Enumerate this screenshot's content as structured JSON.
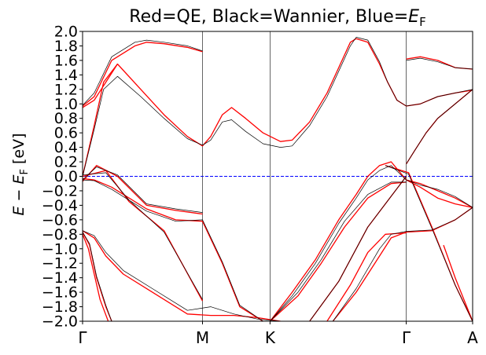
{
  "chart_data": {
    "type": "line",
    "title": "Red=QE, Black=Wannier, Blue=",
    "title_symbol": "E",
    "title_symbol_sub": "F",
    "ylabel": "E − E",
    "ylabel_sub": "F",
    "ylabel_unit": " [eV]",
    "xlabel": "",
    "ylim": [
      -2.0,
      2.0
    ],
    "ytick_step": 0.2,
    "xlim": [
      0,
      3.35
    ],
    "xticks": [
      {
        "label": "Γ",
        "x": 0
      },
      {
        "label": "M",
        "x": 1.03
      },
      {
        "label": "K",
        "x": 1.61
      },
      {
        "label": "Γ",
        "x": 2.78
      },
      {
        "label": "A",
        "x": 3.35
      }
    ],
    "fermi_level": 0.0,
    "grid": false,
    "legend": "none",
    "colors": {
      "qe": "#ff0000",
      "wannier": "#000000",
      "fermi": "#0000ff",
      "frame": "#000000"
    },
    "series": [
      {
        "name": "QE",
        "color": "#ff0000",
        "bands": [
          {
            "x": [
              0,
              0.12,
              0.3,
              0.55,
              0.8,
              1.03
            ],
            "y": [
              -0.07,
              0.15,
              0.0,
              -0.4,
              -0.47,
              -0.52
            ]
          },
          {
            "x": [
              0,
              0.1,
              0.25,
              0.55,
              0.8,
              1.03,
              1.2,
              1.35,
              1.55
            ],
            "y": [
              -0.03,
              -0.05,
              -0.15,
              -0.45,
              -0.6,
              -0.62,
              -1.2,
              -1.8,
              -2.0
            ]
          },
          {
            "x": [
              0,
              0.2,
              0.4,
              0.7,
              1.03
            ],
            "y": [
              0.0,
              0.08,
              -0.35,
              -0.75,
              -1.72
            ]
          },
          {
            "x": [
              0,
              0.1,
              0.2,
              0.35,
              0.6,
              0.9,
              1.1,
              1.3,
              1.5,
              1.7
            ],
            "y": [
              -0.75,
              -0.85,
              -1.1,
              -1.35,
              -1.6,
              -1.9,
              -1.92,
              -1.92,
              -1.95,
              -2.0
            ]
          },
          {
            "x": [
              0,
              0.06,
              0.12,
              0.2,
              0.25
            ],
            "y": [
              -0.77,
              -0.95,
              -1.4,
              -1.8,
              -2.0
            ]
          },
          {
            "x": [
              0,
              0.05,
              0.1,
              0.15,
              0.22
            ],
            "y": [
              -0.8,
              -1.0,
              -1.35,
              -1.7,
              -2.0
            ]
          },
          {
            "x": [
              0,
              0.1,
              0.25,
              0.45,
              0.55,
              0.7,
              0.9,
              1.03
            ],
            "y": [
              0.97,
              1.1,
              1.6,
              1.8,
              1.85,
              1.83,
              1.78,
              1.72
            ]
          },
          {
            "x": [
              0,
              0.1,
              0.18,
              0.3,
              0.5,
              0.7,
              0.9,
              1.03,
              1.1,
              1.2,
              1.28,
              1.4,
              1.55,
              1.7,
              1.8,
              1.95,
              2.1,
              2.2,
              2.3,
              2.35
            ],
            "y": [
              0.0,
              0.7,
              1.3,
              1.55,
              1.2,
              0.85,
              0.55,
              0.42,
              0.55,
              0.85,
              0.95,
              0.8,
              0.6,
              0.48,
              0.5,
              0.75,
              1.15,
              1.5,
              1.85,
              1.9
            ]
          },
          {
            "x": [
              0,
              0.1,
              0.2,
              0.3
            ],
            "y": [
              0.95,
              1.05,
              1.3,
              1.55
            ]
          },
          {
            "x": [
              2.35,
              2.45,
              2.55,
              2.62,
              2.7,
              2.78,
              2.9,
              3.05,
              3.2,
              3.35
            ],
            "y": [
              1.9,
              1.85,
              1.55,
              1.3,
              1.05,
              0.97,
              1.0,
              1.1,
              1.15,
              1.19
            ]
          },
          {
            "x": [
              2.78,
              2.85,
              2.95,
              3.05,
              3.2,
              3.35
            ],
            "y": [
              0.17,
              0.35,
              0.6,
              0.8,
              1.0,
              1.2
            ]
          },
          {
            "x": [
              2.78,
              2.9,
              3.05,
              3.2,
              3.35
            ],
            "y": [
              1.62,
              1.65,
              1.6,
              1.5,
              1.48
            ]
          },
          {
            "x": [
              1.61,
              1.8,
              2.0,
              2.2,
              2.35,
              2.45,
              2.55,
              2.65,
              2.78
            ],
            "y": [
              -2.0,
              -1.6,
              -1.15,
              -0.6,
              -0.25,
              0.0,
              0.15,
              0.2,
              -0.05
            ]
          },
          {
            "x": [
              1.61,
              1.85,
              2.05,
              2.25,
              2.45,
              2.65,
              2.78
            ],
            "y": [
              -2.0,
              -1.65,
              -1.2,
              -0.7,
              -0.3,
              -0.1,
              -0.08
            ]
          },
          {
            "x": [
              1.95,
              2.2,
              2.45,
              2.78
            ],
            "y": [
              -2.0,
              -1.45,
              -0.7,
              0.0
            ]
          },
          {
            "x": [
              2.1,
              2.3,
              2.45,
              2.6,
              2.78
            ],
            "y": [
              -2.0,
              -1.5,
              -1.05,
              -0.8,
              -0.78
            ]
          },
          {
            "x": [
              2.15,
              2.35,
              2.55,
              2.65,
              2.78,
              3.0,
              3.2,
              3.35
            ],
            "y": [
              -2.0,
              -1.6,
              -1.1,
              -0.85,
              -0.77,
              -0.75,
              -0.6,
              -0.43
            ]
          },
          {
            "x": [
              2.78,
              2.9,
              3.05,
              3.2,
              3.35
            ],
            "y": [
              -0.05,
              -0.1,
              -0.2,
              -0.3,
              -0.43
            ]
          },
          {
            "x": [
              2.78,
              2.9,
              3.05,
              3.2,
              3.35
            ],
            "y": [
              -0.05,
              -0.15,
              -0.3,
              -0.38,
              -0.43
            ]
          },
          {
            "x": [
              2.6,
              2.8,
              3.0,
              3.2,
              3.35
            ],
            "y": [
              0.15,
              0.05,
              -0.7,
              -1.5,
              -2.0
            ]
          },
          {
            "x": [
              3.1,
              3.2,
              3.3,
              3.35
            ],
            "y": [
              -0.95,
              -1.4,
              -1.8,
              -2.0
            ]
          }
        ]
      },
      {
        "name": "Wannier",
        "color": "#000000",
        "bands": [
          {
            "x": [
              0,
              0.12,
              0.3,
              0.55,
              0.8,
              1.03
            ],
            "y": [
              -0.05,
              0.13,
              0.02,
              -0.38,
              -0.45,
              -0.5
            ]
          },
          {
            "x": [
              0,
              0.1,
              0.25,
              0.55,
              0.8,
              1.03,
              1.2,
              1.35,
              1.55
            ],
            "y": [
              -0.05,
              -0.06,
              -0.18,
              -0.48,
              -0.62,
              -0.6,
              -1.18,
              -1.78,
              -2.0
            ]
          },
          {
            "x": [
              0,
              0.2,
              0.4,
              0.7,
              1.03
            ],
            "y": [
              0.02,
              0.05,
              -0.33,
              -0.77,
              -1.7
            ]
          },
          {
            "x": [
              0,
              0.1,
              0.2,
              0.35,
              0.6,
              0.9,
              1.1,
              1.3,
              1.5,
              1.7
            ],
            "y": [
              -0.75,
              -0.82,
              -1.05,
              -1.3,
              -1.55,
              -1.85,
              -1.8,
              -1.9,
              -1.97,
              -2.0
            ]
          },
          {
            "x": [
              0,
              0.06,
              0.12,
              0.2,
              0.25
            ],
            "y": [
              -0.77,
              -0.93,
              -1.38,
              -1.78,
              -2.0
            ]
          },
          {
            "x": [
              0,
              0.1,
              0.25,
              0.45,
              0.55,
              0.7,
              0.9,
              1.03
            ],
            "y": [
              0.98,
              1.15,
              1.65,
              1.85,
              1.88,
              1.85,
              1.8,
              1.73
            ]
          },
          {
            "x": [
              0,
              0.1,
              0.18,
              0.3,
              0.5,
              0.7,
              0.9,
              1.03,
              1.1,
              1.2,
              1.28,
              1.4,
              1.55,
              1.7,
              1.8,
              1.95,
              2.1,
              2.2,
              2.3,
              2.35
            ],
            "y": [
              0.0,
              0.65,
              1.2,
              1.38,
              1.1,
              0.8,
              0.52,
              0.43,
              0.5,
              0.75,
              0.78,
              0.62,
              0.45,
              0.4,
              0.42,
              0.7,
              1.1,
              1.45,
              1.8,
              1.92
            ]
          },
          {
            "x": [
              2.35,
              2.45,
              2.55,
              2.62,
              2.7,
              2.78,
              2.9,
              3.05,
              3.2,
              3.35
            ],
            "y": [
              1.92,
              1.88,
              1.58,
              1.3,
              1.05,
              0.97,
              1.0,
              1.1,
              1.15,
              1.2
            ]
          },
          {
            "x": [
              2.78,
              2.85,
              2.95,
              3.05,
              3.2,
              3.35
            ],
            "y": [
              0.17,
              0.35,
              0.6,
              0.8,
              1.0,
              1.2
            ]
          },
          {
            "x": [
              2.78,
              2.9,
              3.05,
              3.2,
              3.35
            ],
            "y": [
              1.6,
              1.63,
              1.58,
              1.5,
              1.48
            ]
          },
          {
            "x": [
              1.61,
              1.8,
              2.0,
              2.2,
              2.35,
              2.45,
              2.55,
              2.65,
              2.78
            ],
            "y": [
              -2.0,
              -1.65,
              -1.2,
              -0.65,
              -0.3,
              -0.05,
              0.08,
              0.15,
              -0.05
            ]
          },
          {
            "x": [
              1.61,
              1.85,
              2.05,
              2.25,
              2.45,
              2.65,
              2.78
            ],
            "y": [
              -2.0,
              -1.6,
              -1.15,
              -0.62,
              -0.25,
              -0.08,
              -0.08
            ]
          },
          {
            "x": [
              1.95,
              2.2,
              2.45,
              2.78
            ],
            "y": [
              -2.0,
              -1.45,
              -0.7,
              0.0
            ]
          },
          {
            "x": [
              2.15,
              2.35,
              2.55,
              2.65,
              2.78,
              3.0,
              3.2,
              3.35
            ],
            "y": [
              -2.0,
              -1.55,
              -1.0,
              -0.8,
              -0.76,
              -0.74,
              -0.6,
              -0.43
            ]
          },
          {
            "x": [
              2.78,
              2.9,
              3.05,
              3.2,
              3.35
            ],
            "y": [
              -0.05,
              -0.12,
              -0.18,
              -0.28,
              -0.43
            ]
          },
          {
            "x": [
              2.6,
              2.8,
              3.0,
              3.2,
              3.35
            ],
            "y": [
              0.15,
              0.03,
              -0.72,
              -1.5,
              -2.0
            ]
          }
        ]
      }
    ]
  }
}
